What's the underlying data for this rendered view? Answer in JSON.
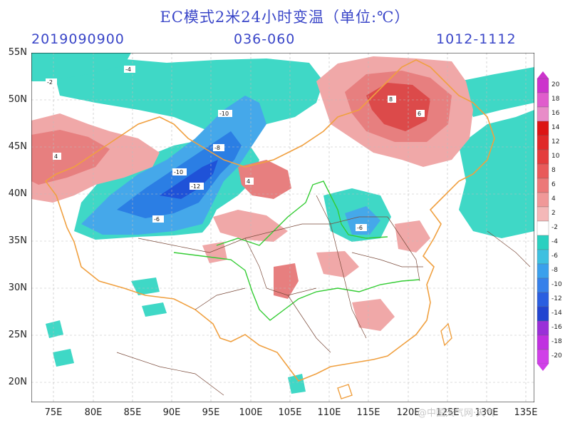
{
  "header": {
    "title": "EC模式2米24小时变温（单位:℃）",
    "init_time": "2019090900",
    "forecast_hours": "036-060",
    "valid_period": "1012-1112"
  },
  "map": {
    "lat_labels": [
      "55N",
      "50N",
      "45N",
      "40N",
      "35N",
      "30N",
      "25N",
      "20N"
    ],
    "lat_values": [
      55,
      50,
      45,
      40,
      35,
      30,
      25,
      20
    ],
    "lon_labels": [
      "75E",
      "80E",
      "85E",
      "90E",
      "95E",
      "100E",
      "105E",
      "110E",
      "115E",
      "120E",
      "125E",
      "130E",
      "135E"
    ],
    "lon_values": [
      75,
      80,
      85,
      90,
      95,
      100,
      105,
      110,
      115,
      120,
      125,
      130,
      135
    ],
    "colors": {
      "warm_light": "#f2b0b0",
      "warm_mid": "#e98585",
      "warm_strong": "#dc4a4a",
      "cool_light": "#40d6c4",
      "cool_mid": "#3fa8ec",
      "cool_strong": "#1f5fe0",
      "border": "#f0a040",
      "river": "#33cc33",
      "province": "#7a4a3a"
    },
    "contour_values": [
      "-12",
      "-10",
      "-8",
      "-6",
      "-4",
      "-2",
      "2",
      "4",
      "6",
      "8"
    ]
  },
  "colorbar": {
    "labels": [
      "20",
      "18",
      "16",
      "14",
      "12",
      "10",
      "8",
      "6",
      "4",
      "2",
      "-2",
      "-4",
      "-6",
      "-8",
      "-10",
      "-12",
      "-14",
      "-16",
      "-18",
      "-20"
    ],
    "colors": [
      "#cc33cc",
      "#e05ccc",
      "#e88cc8",
      "#dc1414",
      "#e02828",
      "#e43c3c",
      "#e85a5a",
      "#ec7878",
      "#f09898",
      "#f4b8b8",
      "#ffffff",
      "#2ad0c0",
      "#3ec0e0",
      "#3aa0ec",
      "#3680ea",
      "#2a5ee0",
      "#2244d0",
      "#9a30d8",
      "#c030e0",
      "#d040e8"
    ]
  },
  "watermark": "@中国天气网·天气"
}
